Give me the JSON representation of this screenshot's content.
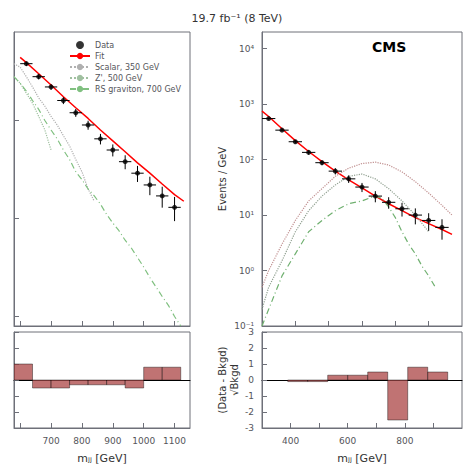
{
  "chart_data": [
    {
      "type": "line",
      "title": "19.7 fb⁻¹ (8 TeV)",
      "log": "y",
      "xlim": [
        580,
        1150
      ],
      "ylim": [
        0.08,
        80
      ],
      "xticks": [
        600,
        700,
        800,
        900,
        1000,
        1100
      ],
      "yticks": [
        0.1,
        1,
        10
      ],
      "tick_labels": false,
      "grid": false,
      "legend": "upper right",
      "series": [
        {
          "name": "Data",
          "type": "scatter",
          "marker": "circle",
          "color": "black",
          "x": [
            620,
            660,
            700,
            740,
            780,
            820,
            860,
            900,
            940,
            980,
            1020,
            1060,
            1100
          ],
          "values": [
            38,
            28,
            22,
            16,
            12,
            9.0,
            6.5,
            5.0,
            3.8,
            2.9,
            2.2,
            1.7,
            1.3
          ],
          "yerr": [
            2.0,
            1.7,
            1.5,
            1.3,
            1.1,
            0.95,
            0.8,
            0.7,
            0.62,
            0.54,
            0.47,
            0.41,
            0.36
          ],
          "xerr": 20
        },
        {
          "name": "Fit",
          "type": "line",
          "line_style": "solid",
          "color": "red",
          "x": [
            600,
            620,
            660,
            700,
            740,
            780,
            820,
            860,
            900,
            940,
            980,
            1020,
            1060,
            1100,
            1130
          ],
          "values": [
            44,
            39,
            30,
            23,
            17.5,
            13.5,
            10.5,
            8.0,
            6.2,
            4.8,
            3.7,
            2.9,
            2.25,
            1.75,
            1.5
          ]
        },
        {
          "name": "Scalar, 350 GeV",
          "type": "line",
          "line_style": "dotted",
          "color": "#b0b0b0",
          "x": [
            580,
            600,
            620,
            640,
            660,
            680,
            700,
            720,
            740,
            760,
            780,
            800,
            820,
            840
          ],
          "values": [
            38,
            35,
            28,
            22,
            17,
            14,
            11,
            9,
            7,
            5.5,
            4,
            3,
            2,
            1.5
          ]
        },
        {
          "name": "Z', 500 GeV",
          "type": "line",
          "line_style": "dotted",
          "color": "#a0c0a0",
          "x": [
            580,
            600,
            620,
            640,
            660,
            680,
            700
          ],
          "values": [
            28,
            24,
            19,
            15,
            11,
            8,
            5
          ]
        },
        {
          "name": "RS graviton, 700 GeV",
          "type": "line",
          "line_style": "dashdot",
          "color": "#80c080",
          "x": [
            580,
            600,
            620,
            640,
            660,
            680,
            700,
            720,
            740,
            760,
            780,
            800,
            820,
            840,
            860,
            880,
            900,
            920,
            940,
            960,
            980,
            1000,
            1020,
            1040,
            1060,
            1080,
            1100,
            1120
          ],
          "values": [
            28,
            24,
            20,
            16,
            13,
            10,
            8,
            6.5,
            5,
            4,
            3,
            2.5,
            2,
            1.7,
            1.4,
            1.1,
            0.9,
            0.75,
            0.6,
            0.5,
            0.4,
            0.32,
            0.25,
            0.2,
            0.16,
            0.13,
            0.1,
            0.08
          ]
        }
      ]
    },
    {
      "type": "bar",
      "xlim": [
        580,
        1150
      ],
      "ylim": [
        -3,
        3
      ],
      "xticks": [
        {
          "value": 600,
          "label": ""
        },
        700,
        800,
        900,
        1000,
        1100
      ],
      "yticks": [
        -3,
        -2,
        -1,
        0,
        1,
        2,
        3
      ],
      "tick_labels": "x",
      "grid": false,
      "xlabel": "mⱼⱼ [GeV]",
      "color": "#b05050",
      "bins": [
        580,
        640,
        700,
        760,
        820,
        880,
        940,
        1000,
        1060,
        1120
      ],
      "values": [
        1.0,
        -0.5,
        -0.5,
        -0.3,
        -0.3,
        -0.3,
        -0.5,
        0.8,
        0.8
      ]
    },
    {
      "type": "line",
      "log": "y",
      "xlim": [
        400,
        1000
      ],
      "ylim": [
        0.1,
        20000
      ],
      "xticks": [
        400,
        500,
        600,
        700,
        800,
        900
      ],
      "yticks": [
        {
          "value": 0.1,
          "label": "10⁻¹"
        },
        {
          "value": 1,
          "label": "10⁰"
        },
        {
          "value": 10,
          "label": "10¹"
        },
        {
          "value": 100,
          "label": "10²"
        },
        {
          "value": 1000,
          "label": "10³"
        },
        {
          "value": 10000,
          "label": "10⁴"
        }
      ],
      "tick_labels": "y",
      "grid": false,
      "ylabel": "Events / GeV",
      "annotations": [
        "CMS"
      ],
      "series": [
        {
          "type": "scatter",
          "marker": "circle",
          "color": "black",
          "x": [
            420,
            460,
            500,
            540,
            580,
            620,
            660,
            700,
            740,
            780,
            820,
            860,
            900,
            940
          ],
          "values": [
            550,
            340,
            210,
            135,
            88,
            62,
            45,
            32,
            22,
            17,
            13,
            10,
            8,
            6
          ],
          "yerr": [
            23,
            18,
            14,
            12,
            9,
            8,
            7,
            6,
            5,
            4,
            3.6,
            3.2,
            2.8,
            2.4
          ],
          "xerr": 20
        },
        {
          "type": "line",
          "line_style": "solid",
          "color": "red",
          "x": [
            400,
            420,
            460,
            500,
            540,
            580,
            620,
            660,
            700,
            740,
            780,
            820,
            860,
            900,
            940,
            970
          ],
          "values": [
            750,
            600,
            360,
            220,
            140,
            92,
            62,
            43,
            31,
            22,
            16,
            12,
            9,
            7,
            5.5,
            4.5
          ]
        },
        {
          "type": "line",
          "line_style": "dotted",
          "color": "#c09090",
          "x": [
            400,
            420,
            460,
            500,
            540,
            580,
            620,
            660,
            700,
            740,
            780,
            820,
            860,
            900,
            940,
            970
          ],
          "values": [
            0.5,
            1,
            3,
            8,
            18,
            30,
            50,
            70,
            85,
            90,
            80,
            60,
            40,
            25,
            15,
            10
          ]
        },
        {
          "type": "line",
          "line_style": "dotted",
          "color": "#90a090",
          "x": [
            400,
            420,
            460,
            500,
            540,
            580,
            620,
            660,
            700,
            740,
            780,
            820,
            860,
            900
          ],
          "values": [
            0.2,
            0.5,
            1.5,
            5,
            12,
            22,
            35,
            50,
            55,
            45,
            30,
            18,
            10,
            5
          ]
        },
        {
          "type": "line",
          "line_style": "dashdot",
          "color": "#70b070",
          "x": [
            400,
            420,
            460,
            500,
            540,
            580,
            620,
            660,
            700,
            720,
            740,
            760,
            780,
            800,
            820,
            840,
            860,
            880,
            900,
            920
          ],
          "values": [
            0.1,
            0.2,
            0.8,
            2,
            5,
            8,
            12,
            16,
            18,
            20,
            22,
            20,
            14,
            9,
            5,
            3,
            2,
            1.2,
            0.8,
            0.5
          ]
        }
      ]
    },
    {
      "type": "bar",
      "xlim": [
        300,
        1000
      ],
      "ylim": [
        -3,
        3
      ],
      "xticks": [
        {
          "value": 300,
          "label": ""
        },
        400,
        {
          "value": 500,
          "label": ""
        },
        600,
        {
          "value": 700,
          "label": ""
        },
        800,
        {
          "value": 900,
          "label": ""
        }
      ],
      "yticks": [
        -3,
        -2,
        -1,
        0,
        1,
        2,
        3
      ],
      "grid": false,
      "xlabel": "mⱼⱼ [GeV]",
      "ylabel": "(Data - Bkgd)\n√Bkgd",
      "color": "#b05050",
      "bins": [
        390,
        460,
        530,
        600,
        670,
        740,
        810,
        880,
        950
      ],
      "values": [
        -0.1,
        -0.1,
        0.3,
        0.3,
        0.5,
        -2.5,
        0.8,
        0.5
      ]
    }
  ]
}
